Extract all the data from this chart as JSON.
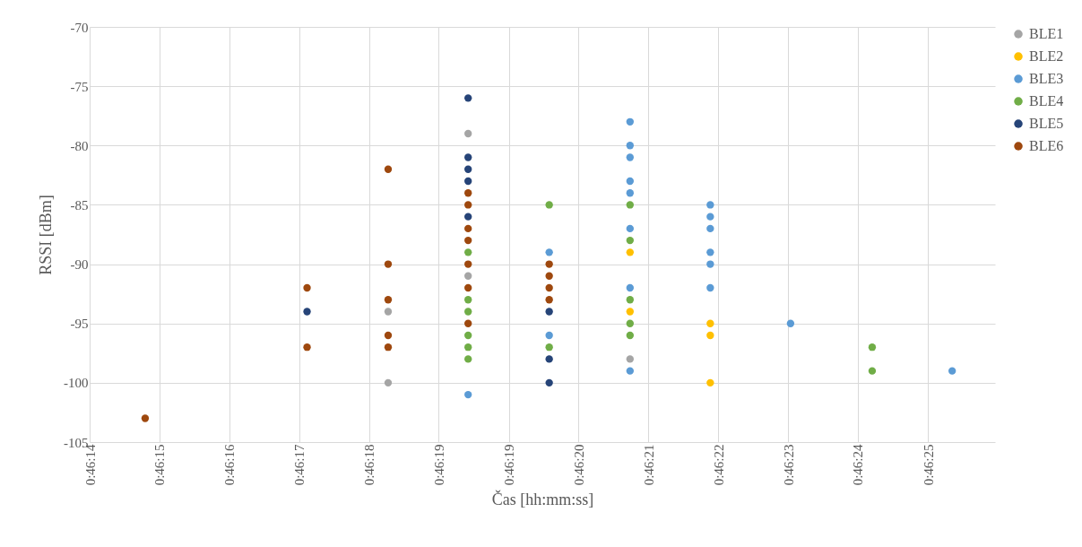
{
  "chart_data": {
    "type": "scatter",
    "xlabel": "Čas [hh:mm:ss]",
    "ylabel": "RSSI [dBm]",
    "grid": true,
    "legend": "right",
    "marker": "circle",
    "xlim": [
      0.770556,
      0.77385
    ],
    "xticks": [
      {
        "value": 0.770556,
        "label": "0:46:14"
      },
      {
        "value": 0.77081,
        "label": "0:46:15"
      },
      {
        "value": 0.771064,
        "label": "0:46:16"
      },
      {
        "value": 0.771318,
        "label": "0:46:17"
      },
      {
        "value": 0.771572,
        "label": "0:46:18"
      },
      {
        "value": 0.771826,
        "label": "0:46:19"
      },
      {
        "value": 0.772081,
        "label": "0:46:19"
      },
      {
        "value": 0.772335,
        "label": "0:46:20"
      },
      {
        "value": 0.772589,
        "label": "0:46:21"
      },
      {
        "value": 0.772843,
        "label": "0:46:22"
      },
      {
        "value": 0.773097,
        "label": "0:46:23"
      },
      {
        "value": 0.773351,
        "label": "0:46:24"
      },
      {
        "value": 0.773606,
        "label": "0:46:25"
      }
    ],
    "ylim": [
      -105,
      -70
    ],
    "yticks": [
      -105,
      -100,
      -95,
      -90,
      -85,
      -80,
      -75,
      -70
    ],
    "series": [
      {
        "name": "BLE1",
        "color": "#a5a5a5",
        "x": [
          0.771642,
          0.771642,
          0.771933,
          0.771933,
          0.772522
        ],
        "values": [
          -94,
          -100,
          -79,
          -91,
          -98
        ]
      },
      {
        "name": "BLE2",
        "color": "#ffc000",
        "x": [
          0.772522,
          0.772522,
          0.772814,
          0.772814,
          0.772814
        ],
        "values": [
          -89,
          -94,
          -95,
          -96,
          -100
        ]
      },
      {
        "name": "BLE3",
        "color": "#5b9bd5",
        "x": [
          0.771933,
          0.772228,
          0.772228,
          0.772522,
          0.772522,
          0.772522,
          0.772522,
          0.772522,
          0.772522,
          0.772522,
          0.772522,
          0.772814,
          0.772814,
          0.772814,
          0.772814,
          0.772814,
          0.772814,
          0.773106,
          0.773694
        ],
        "values": [
          -101,
          -89,
          -96,
          -78,
          -80,
          -81,
          -83,
          -84,
          -87,
          -92,
          -99,
          -85,
          -86,
          -87,
          -89,
          -90,
          -92,
          -95,
          -99
        ]
      },
      {
        "name": "BLE4",
        "color": "#70ad47",
        "x": [
          0.771933,
          0.771933,
          0.771933,
          0.771933,
          0.771933,
          0.771933,
          0.772228,
          0.772228,
          0.772522,
          0.772522,
          0.772522,
          0.772522,
          0.772522,
          0.773403,
          0.773403
        ],
        "values": [
          -89,
          -93,
          -94,
          -96,
          -97,
          -98,
          -85,
          -97,
          -85,
          -88,
          -93,
          -95,
          -96,
          -97,
          -99
        ]
      },
      {
        "name": "BLE5",
        "color": "#264478",
        "x": [
          0.771347,
          0.771933,
          0.771933,
          0.771933,
          0.771933,
          0.771933,
          0.772228,
          0.772228,
          0.772228
        ],
        "values": [
          -94,
          -76,
          -81,
          -82,
          -83,
          -86,
          -94,
          -98,
          -100
        ]
      },
      {
        "name": "BLE6",
        "color": "#9e480e",
        "x": [
          0.770758,
          0.771347,
          0.771347,
          0.771642,
          0.771642,
          0.771642,
          0.771642,
          0.771642,
          0.771933,
          0.771933,
          0.771933,
          0.771933,
          0.771933,
          0.771933,
          0.771933,
          0.772228,
          0.772228,
          0.772228,
          0.772228
        ],
        "values": [
          -103,
          -92,
          -97,
          -82,
          -90,
          -93,
          -96,
          -97,
          -84,
          -85,
          -87,
          -88,
          -90,
          -92,
          -95,
          -90,
          -91,
          -92,
          -93
        ]
      }
    ]
  }
}
